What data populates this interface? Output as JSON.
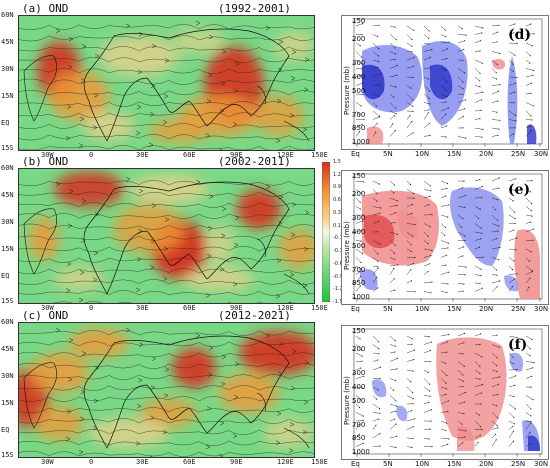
{
  "colors": {
    "strong_positive": "#d7301f",
    "positive": "#ee9a3a",
    "weak_positive": "#f6d08a",
    "neutral": "#f5f5e6",
    "negative": "#6fd17a",
    "strong_negative": "#1ec23a",
    "cs_positive": "#f08b8b",
    "cs_positive_strong": "#e04545",
    "cs_negative": "#8c93f0",
    "cs_negative_strong": "#2b33c9"
  },
  "maps": [
    {
      "panel": "(a)",
      "season": "OND",
      "period": "(1992-2001)"
    },
    {
      "panel": "(b)",
      "season": "OND",
      "period": "(2002-2011)"
    },
    {
      "panel": "(c)",
      "season": "OND",
      "period": "(2012-2021)"
    }
  ],
  "lat_labels": [
    "60N",
    "45N",
    "30N",
    "15N",
    "EQ",
    "15S"
  ],
  "lon_labels": [
    "30W",
    "0",
    "30E",
    "60E",
    "90E",
    "120E",
    "150E"
  ],
  "colorbar": {
    "labels": [
      "1.5",
      "1.2",
      "0.9",
      "0.6",
      "0.3",
      "0.1",
      "-0.1",
      "-0.3",
      "-0.6",
      "-0.9",
      "-1.2",
      "-1.5"
    ]
  },
  "cross_sections": [
    {
      "label": "(d)"
    },
    {
      "label": "(e)"
    },
    {
      "label": "(f)"
    }
  ],
  "pressure_axis": {
    "title": "Pressure (mb)",
    "levels": [
      "150",
      "200",
      "300",
      "400",
      "500",
      "700",
      "850",
      "1000"
    ]
  },
  "lat_axis": {
    "ticks": [
      "Eq",
      "5N",
      "10N",
      "15N",
      "20N",
      "25N",
      "30N"
    ]
  }
}
